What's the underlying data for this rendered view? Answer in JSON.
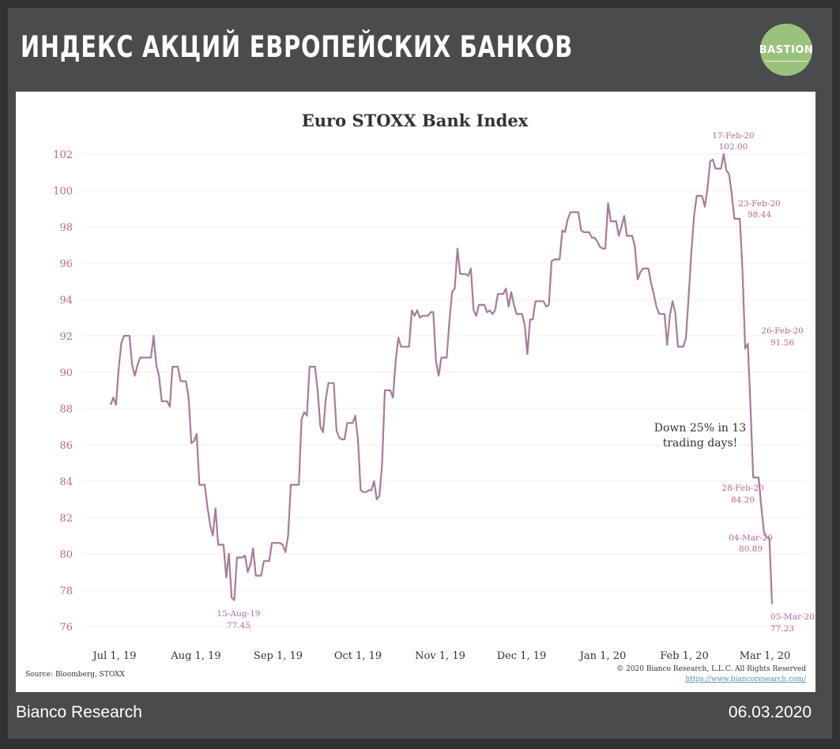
{
  "header": {
    "title": "ИНДЕКС АКЦИЙ ЕВРОПЕЙСКИХ БАНКОВ",
    "logo_text": "BASTION",
    "logo_color": "#9bc27c"
  },
  "footer": {
    "source_name": "Bianco Research",
    "date": "06.03.2020"
  },
  "chart_data": {
    "type": "line",
    "title": "Euro STOXX Bank Index",
    "xlabel": "",
    "ylabel": "",
    "ylim": [
      76,
      102
    ],
    "yticks": [
      76,
      78,
      80,
      82,
      84,
      86,
      88,
      90,
      92,
      94,
      96,
      98,
      100,
      102
    ],
    "xticks": [
      "Jul 1, 19",
      "Aug 1, 19",
      "Sep 1, 19",
      "Oct 1, 19",
      "Nov 1, 19",
      "Dec 1, 19",
      "Jan 1, 20",
      "Feb 1, 20",
      "Mar 1, 20"
    ],
    "grid": true,
    "line_color": "#a67c99",
    "axis_text_color": "#b5689a",
    "series": [
      {
        "values": [
          88.2,
          88.6,
          88.2,
          90.2,
          91.6,
          92.0,
          92.0,
          92.0,
          90.4,
          89.8,
          90.4,
          90.8,
          90.8,
          90.8,
          90.8,
          90.8,
          92.0,
          90.4,
          89.8,
          88.4,
          88.4,
          88.4,
          88.1,
          90.3,
          90.3,
          90.3,
          89.5,
          89.5,
          89.5,
          88.6,
          86.1,
          86.2,
          86.6,
          83.8,
          83.8,
          83.8,
          82.6,
          81.6,
          81.0,
          82.5,
          80.5,
          80.5,
          80.5,
          78.7,
          80.0,
          77.6,
          77.45,
          79.8,
          79.8,
          79.8,
          79.9,
          79.0,
          79.4,
          80.3,
          78.8,
          78.8,
          78.8,
          79.6,
          79.6,
          79.6,
          80.6,
          80.6,
          80.6,
          80.6,
          80.5,
          80.1,
          81.0,
          83.8,
          83.8,
          83.8,
          83.8,
          87.4,
          87.8,
          87.6,
          90.3,
          90.3,
          90.3,
          89.0,
          87.0,
          86.7,
          88.5,
          89.4,
          89.4,
          89.4,
          86.8,
          86.4,
          86.3,
          86.3,
          87.2,
          87.2,
          87.2,
          87.6,
          86.3,
          83.5,
          83.4,
          83.4,
          83.5,
          83.5,
          84.0,
          83.0,
          83.2,
          85.0,
          89.0,
          89.0,
          89.0,
          88.6,
          90.6,
          91.9,
          91.4,
          91.4,
          91.4,
          91.4,
          93.4,
          93.1,
          93.4,
          93.0,
          93.1,
          93.1,
          93.1,
          93.3,
          93.3,
          90.6,
          89.8,
          90.8,
          90.8,
          90.8,
          92.8,
          94.4,
          94.6,
          96.8,
          95.4,
          95.4,
          95.4,
          95.3,
          95.7,
          93.4,
          93.1,
          93.7,
          93.7,
          93.7,
          93.3,
          93.4,
          93.2,
          93.4,
          94.3,
          94.3,
          94.3,
          94.6,
          93.6,
          94.4,
          93.7,
          93.2,
          93.2,
          93.2,
          92.6,
          91.0,
          92.9,
          92.9,
          93.9,
          93.9,
          93.9,
          93.9,
          93.6,
          93.7,
          96.1,
          96.2,
          96.2,
          96.2,
          97.8,
          97.7,
          98.4,
          98.8,
          98.8,
          98.8,
          98.8,
          97.8,
          97.7,
          97.7,
          97.7,
          97.4,
          97.4,
          97.2,
          96.9,
          96.8,
          96.8,
          99.3,
          98.3,
          98.3,
          98.3,
          97.5,
          98.0,
          98.6,
          97.5,
          97.5,
          97.5,
          96.9,
          95.1,
          95.5,
          95.7,
          95.7,
          95.7,
          94.9,
          94.3,
          93.6,
          93.2,
          93.2,
          93.2,
          91.5,
          93.1,
          93.9,
          93.3,
          91.4,
          91.4,
          91.4,
          91.9,
          94.2,
          96.6,
          98.6,
          99.7,
          99.7,
          99.7,
          99.1,
          100.1,
          101.6,
          101.7,
          101.2,
          101.2,
          101.2,
          102.0,
          101.1,
          100.9,
          99.8,
          98.44,
          98.44,
          98.44,
          95.6,
          91.3,
          91.56,
          88.0,
          84.2,
          84.2,
          84.2,
          82.6,
          81.2,
          80.9,
          80.89,
          77.23
        ]
      }
    ],
    "annotations": [
      {
        "date": "15-Aug-19",
        "value": "77.45"
      },
      {
        "date": "17-Feb-20",
        "value": "102.00"
      },
      {
        "date": "23-Feb-20",
        "value": "98.44"
      },
      {
        "date": "26-Feb-20",
        "value": "91.56"
      },
      {
        "date": "28-Feb-20",
        "value": "84.20"
      },
      {
        "date": "04-Mar-20",
        "value": "80.89"
      },
      {
        "date": "05-Mar-20",
        "value": "77.23"
      }
    ],
    "callout": [
      "Down 25% in 13",
      "trading days!"
    ],
    "source_note": "Source: Bloomberg, STOXX",
    "copyright": "© 2020 Bianco Research, L.L.C. All Rights Reserved",
    "website": "https://www.biancoresearch.com/"
  }
}
